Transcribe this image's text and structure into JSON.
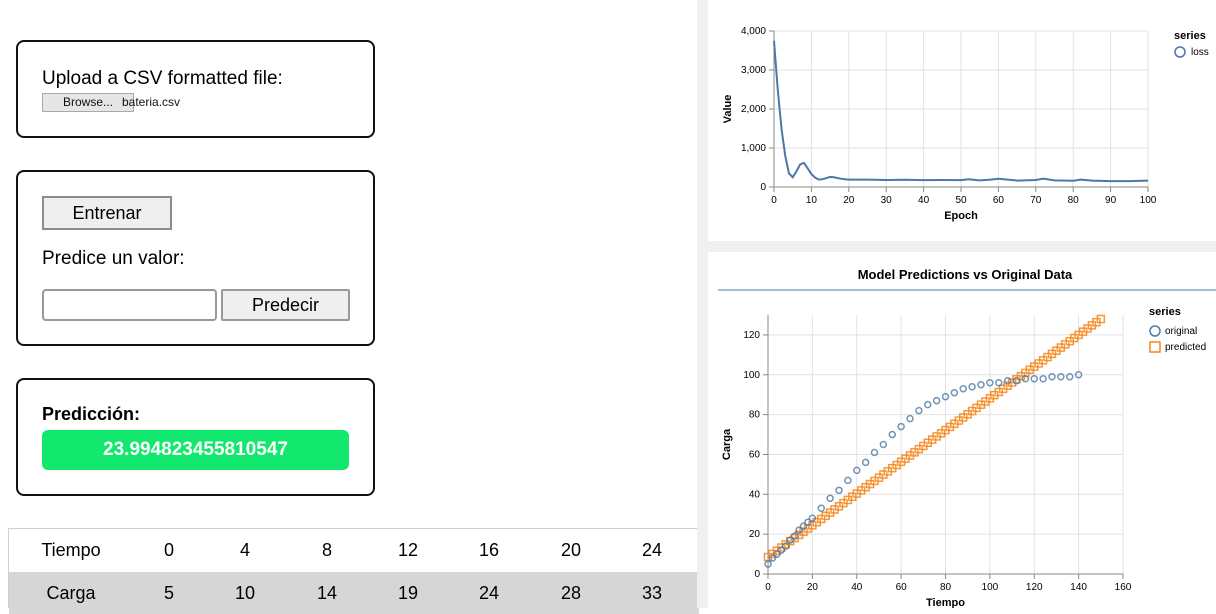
{
  "upload": {
    "label": "Upload a CSV formatted file:",
    "browse_label": "Browse...",
    "file_name": "bateria.csv"
  },
  "train": {
    "train_label": "Entrenar",
    "predict_label": "Predice un valor:",
    "input_value": "",
    "predict_button": "Predecir"
  },
  "prediction": {
    "label": "Predicción:",
    "value": "23.994823455810547",
    "color": "#12e86d"
  },
  "table": {
    "rows": [
      {
        "header": "Tiempo",
        "values": [
          "0",
          "4",
          "8",
          "12",
          "16",
          "20",
          "24"
        ]
      },
      {
        "header": "Carga",
        "values": [
          "5",
          "10",
          "14",
          "19",
          "24",
          "28",
          "33"
        ]
      }
    ]
  },
  "chart_data": [
    {
      "type": "line",
      "title": "",
      "xlabel": "Epoch",
      "ylabel": "Value",
      "xlim": [
        0,
        100
      ],
      "ylim": [
        0,
        4000
      ],
      "xticks": [
        "0",
        "10",
        "20",
        "30",
        "40",
        "50",
        "60",
        "70",
        "80",
        "90",
        "100"
      ],
      "yticks": [
        "0",
        "1,000",
        "2,000",
        "3,000",
        "4,000"
      ],
      "grid": true,
      "legend_title": "series",
      "legend_position": "top-right",
      "series": [
        {
          "name": "loss",
          "color": "#4c78a8",
          "x": [
            0,
            1,
            2,
            3,
            4,
            5,
            6,
            7,
            8,
            9,
            10,
            11,
            12,
            13,
            14,
            15,
            16,
            18,
            20,
            25,
            30,
            35,
            40,
            45,
            50,
            52,
            55,
            58,
            60,
            65,
            70,
            72,
            75,
            80,
            82,
            85,
            90,
            95,
            100
          ],
          "y": [
            3750,
            2500,
            1500,
            800,
            350,
            250,
            400,
            580,
            620,
            480,
            330,
            240,
            190,
            200,
            230,
            260,
            250,
            210,
            190,
            190,
            180,
            185,
            175,
            180,
            175,
            200,
            170,
            190,
            210,
            165,
            180,
            215,
            170,
            160,
            190,
            165,
            150,
            150,
            165
          ]
        }
      ]
    },
    {
      "type": "scatter",
      "title": "Model Predictions vs Original Data",
      "xlabel": "Tiempo",
      "ylabel": "Carga",
      "xlim": [
        0,
        160
      ],
      "ylim": [
        0,
        130
      ],
      "xticks": [
        "0",
        "20",
        "40",
        "60",
        "80",
        "100",
        "120",
        "140",
        "160"
      ],
      "yticks": [
        "0",
        "20",
        "40",
        "60",
        "80",
        "100",
        "120"
      ],
      "grid": true,
      "legend_title": "series",
      "legend_position": "top-right",
      "series": [
        {
          "name": "original",
          "marker": "circle",
          "color": "#4c78a8",
          "x": [
            0,
            2,
            4,
            6,
            8,
            10,
            12,
            14,
            16,
            18,
            20,
            24,
            28,
            32,
            36,
            40,
            44,
            48,
            52,
            56,
            60,
            64,
            68,
            72,
            76,
            80,
            84,
            88,
            92,
            96,
            100,
            104,
            108,
            112,
            116,
            120,
            124,
            128,
            132,
            136,
            140
          ],
          "y": [
            5,
            8,
            10,
            12,
            14,
            17,
            19,
            22,
            24,
            26,
            28,
            33,
            38,
            42,
            47,
            52,
            56,
            61,
            65,
            70,
            74,
            78,
            82,
            85,
            87,
            89,
            91,
            93,
            94,
            95,
            96,
            96,
            97,
            97,
            98,
            98,
            98,
            99,
            99,
            99,
            100
          ]
        },
        {
          "name": "predicted",
          "marker": "square",
          "color": "#f58518",
          "x0": 0,
          "x1": 150,
          "step": 2,
          "y_at_x0": 8.5,
          "y_at_x1": 128
        }
      ]
    }
  ]
}
